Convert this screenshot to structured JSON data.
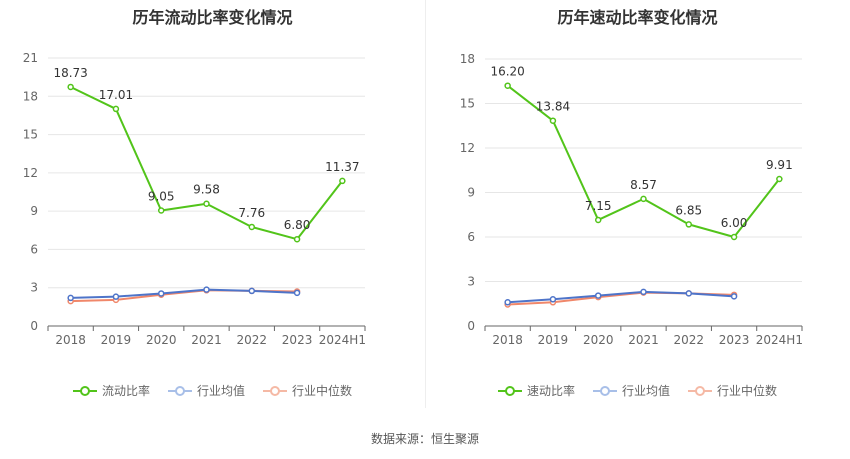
{
  "chart_data": [
    {
      "type": "line",
      "title": "历年流动比率变化情况",
      "categories": [
        "2018",
        "2019",
        "2020",
        "2021",
        "2022",
        "2023",
        "2024H1"
      ],
      "ylim": [
        0,
        21
      ],
      "yticks": [
        0,
        3,
        6,
        9,
        12,
        15,
        18,
        21
      ],
      "grid": true,
      "legend_position": "bottom",
      "series": [
        {
          "name": "流动比率",
          "color": "#52c41a",
          "show_labels": true,
          "values": [
            18.73,
            17.01,
            9.05,
            9.58,
            7.76,
            6.8,
            11.37
          ],
          "labels": [
            "18.73",
            "17.01",
            "9.05",
            "9.58",
            "7.76",
            "6.80",
            "11.37"
          ]
        },
        {
          "name": "行业均值",
          "color": "#4e74c9",
          "show_labels": false,
          "values": [
            2.2,
            2.3,
            2.55,
            2.85,
            2.75,
            2.6,
            null
          ]
        },
        {
          "name": "行业中位数",
          "color": "#f0876a",
          "show_labels": false,
          "values": [
            1.95,
            2.05,
            2.45,
            2.8,
            2.75,
            2.7,
            null
          ]
        }
      ]
    },
    {
      "type": "line",
      "title": "历年速动比率变化情况",
      "categories": [
        "2018",
        "2019",
        "2020",
        "2021",
        "2022",
        "2023",
        "2024H1"
      ],
      "ylim": [
        0,
        18
      ],
      "yticks": [
        0,
        3,
        6,
        9,
        12,
        15,
        18
      ],
      "grid": true,
      "legend_position": "bottom",
      "series": [
        {
          "name": "速动比率",
          "color": "#52c41a",
          "show_labels": true,
          "values": [
            16.2,
            13.84,
            7.15,
            8.57,
            6.85,
            6.0,
            9.91
          ],
          "labels": [
            "16.20",
            "13.84",
            "7.15",
            "8.57",
            "6.85",
            "6.00",
            "9.91"
          ]
        },
        {
          "name": "行业均值",
          "color": "#4e74c9",
          "show_labels": false,
          "values": [
            1.6,
            1.8,
            2.05,
            2.3,
            2.2,
            2.0,
            null
          ]
        },
        {
          "name": "行业中位数",
          "color": "#f0876a",
          "show_labels": false,
          "values": [
            1.45,
            1.6,
            1.95,
            2.25,
            2.2,
            2.1,
            null
          ]
        }
      ]
    }
  ],
  "legend_colors": {
    "main": "#52c41a",
    "mean": "#a8bfe8",
    "median": "#f5b9a5"
  },
  "source": "数据来源：恒生聚源"
}
